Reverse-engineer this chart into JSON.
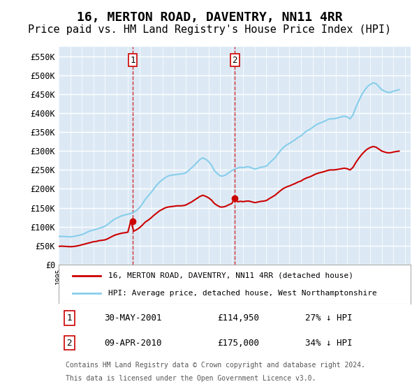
{
  "title": "16, MERTON ROAD, DAVENTRY, NN11 4RR",
  "subtitle": "Price paid vs. HM Land Registry's House Price Index (HPI)",
  "title_fontsize": 13,
  "subtitle_fontsize": 11,
  "ylabel_ticks": [
    "£0",
    "£50K",
    "£100K",
    "£150K",
    "£200K",
    "£250K",
    "£300K",
    "£350K",
    "£400K",
    "£450K",
    "£500K",
    "£550K"
  ],
  "ytick_values": [
    0,
    50000,
    100000,
    150000,
    200000,
    250000,
    300000,
    350000,
    400000,
    450000,
    500000,
    550000
  ],
  "ylim": [
    0,
    575000
  ],
  "background_color": "#dce9f5",
  "plot_bg_color": "#dce9f5",
  "grid_color": "#ffffff",
  "hpi_color": "#87CEEB",
  "price_color": "#cc0000",
  "marker1_x": 2001.42,
  "marker1_y": 114950,
  "marker2_x": 2010.27,
  "marker2_y": 175000,
  "legend_line1": "16, MERTON ROAD, DAVENTRY, NN11 4RR (detached house)",
  "legend_line2": "HPI: Average price, detached house, West Northamptonshire",
  "transaction1_num": "1",
  "transaction1_date": "30-MAY-2001",
  "transaction1_price": "£114,950",
  "transaction1_hpi": "27% ↓ HPI",
  "transaction2_num": "2",
  "transaction2_date": "09-APR-2010",
  "transaction2_price": "£175,000",
  "transaction2_hpi": "34% ↓ HPI",
  "footnote1": "Contains HM Land Registry data © Crown copyright and database right 2024.",
  "footnote2": "This data is licensed under the Open Government Licence v3.0.",
  "xmin": 1995,
  "xmax": 2025.5,
  "hpi_data_x": [
    1995.0,
    1995.25,
    1995.5,
    1995.75,
    1996.0,
    1996.25,
    1996.5,
    1996.75,
    1997.0,
    1997.25,
    1997.5,
    1997.75,
    1998.0,
    1998.25,
    1998.5,
    1998.75,
    1999.0,
    1999.25,
    1999.5,
    1999.75,
    2000.0,
    2000.25,
    2000.5,
    2000.75,
    2001.0,
    2001.25,
    2001.5,
    2001.75,
    2002.0,
    2002.25,
    2002.5,
    2002.75,
    2003.0,
    2003.25,
    2003.5,
    2003.75,
    2004.0,
    2004.25,
    2004.5,
    2004.75,
    2005.0,
    2005.25,
    2005.5,
    2005.75,
    2006.0,
    2006.25,
    2006.5,
    2006.75,
    2007.0,
    2007.25,
    2007.5,
    2007.75,
    2008.0,
    2008.25,
    2008.5,
    2008.75,
    2009.0,
    2009.25,
    2009.5,
    2009.75,
    2010.0,
    2010.25,
    2010.5,
    2010.75,
    2011.0,
    2011.25,
    2011.5,
    2011.75,
    2012.0,
    2012.25,
    2012.5,
    2012.75,
    2013.0,
    2013.25,
    2013.5,
    2013.75,
    2014.0,
    2014.25,
    2014.5,
    2014.75,
    2015.0,
    2015.25,
    2015.5,
    2015.75,
    2016.0,
    2016.25,
    2016.5,
    2016.75,
    2017.0,
    2017.25,
    2017.5,
    2017.75,
    2018.0,
    2018.25,
    2018.5,
    2018.75,
    2019.0,
    2019.25,
    2019.5,
    2019.75,
    2020.0,
    2020.25,
    2020.5,
    2020.75,
    2021.0,
    2021.25,
    2021.5,
    2021.75,
    2022.0,
    2022.25,
    2022.5,
    2022.75,
    2023.0,
    2023.25,
    2023.5,
    2023.75,
    2024.0,
    2024.25,
    2024.5
  ],
  "hpi_data_y": [
    74000,
    74500,
    74000,
    73500,
    73000,
    74000,
    75500,
    77000,
    79000,
    82000,
    86000,
    89000,
    91000,
    93000,
    96000,
    98000,
    101000,
    106000,
    112000,
    118000,
    122000,
    126000,
    129000,
    131000,
    133000,
    135000,
    138000,
    143000,
    150000,
    160000,
    172000,
    181000,
    190000,
    200000,
    210000,
    218000,
    224000,
    230000,
    234000,
    236000,
    237000,
    238000,
    239000,
    240000,
    242000,
    248000,
    255000,
    262000,
    270000,
    278000,
    282000,
    278000,
    272000,
    262000,
    248000,
    240000,
    234000,
    234000,
    237000,
    243000,
    248000,
    252000,
    255000,
    257000,
    256000,
    258000,
    258000,
    255000,
    252000,
    254000,
    257000,
    258000,
    260000,
    268000,
    275000,
    282000,
    292000,
    302000,
    310000,
    316000,
    320000,
    325000,
    330000,
    336000,
    340000,
    347000,
    353000,
    357000,
    362000,
    368000,
    372000,
    375000,
    378000,
    382000,
    385000,
    385000,
    386000,
    388000,
    390000,
    392000,
    390000,
    385000,
    395000,
    415000,
    432000,
    448000,
    460000,
    470000,
    476000,
    480000,
    478000,
    470000,
    462000,
    458000,
    455000,
    455000,
    458000,
    460000,
    462000
  ],
  "price_data_x": [
    1995.0,
    1995.25,
    1995.5,
    1995.75,
    1996.0,
    1996.25,
    1996.5,
    1996.75,
    1997.0,
    1997.25,
    1997.5,
    1997.75,
    1998.0,
    1998.25,
    1998.5,
    1998.75,
    1999.0,
    1999.25,
    1999.5,
    1999.75,
    2000.0,
    2000.25,
    2000.5,
    2000.75,
    2001.0,
    2001.25,
    2001.5,
    2001.75,
    2002.0,
    2002.25,
    2002.5,
    2002.75,
    2003.0,
    2003.25,
    2003.5,
    2003.75,
    2004.0,
    2004.25,
    2004.5,
    2004.75,
    2005.0,
    2005.25,
    2005.5,
    2005.75,
    2006.0,
    2006.25,
    2006.5,
    2006.75,
    2007.0,
    2007.25,
    2007.5,
    2007.75,
    2008.0,
    2008.25,
    2008.5,
    2008.75,
    2009.0,
    2009.25,
    2009.5,
    2009.75,
    2010.0,
    2010.25,
    2010.5,
    2010.75,
    2011.0,
    2011.25,
    2011.5,
    2011.75,
    2012.0,
    2012.25,
    2012.5,
    2012.75,
    2013.0,
    2013.25,
    2013.5,
    2013.75,
    2014.0,
    2014.25,
    2014.5,
    2014.75,
    2015.0,
    2015.25,
    2015.5,
    2015.75,
    2016.0,
    2016.25,
    2016.5,
    2016.75,
    2017.0,
    2017.25,
    2017.5,
    2017.75,
    2018.0,
    2018.25,
    2018.5,
    2018.75,
    2019.0,
    2019.25,
    2019.5,
    2019.75,
    2020.0,
    2020.25,
    2020.5,
    2020.75,
    2021.0,
    2021.25,
    2021.5,
    2021.75,
    2022.0,
    2022.25,
    2022.5,
    2022.75,
    2023.0,
    2023.25,
    2023.5,
    2023.75,
    2024.0,
    2024.25,
    2024.5
  ],
  "price_data_y": [
    48000,
    48500,
    48000,
    47500,
    47000,
    47500,
    48500,
    50000,
    52000,
    54000,
    56000,
    58000,
    60000,
    61000,
    63000,
    64000,
    65000,
    68000,
    72000,
    76000,
    79000,
    81000,
    83000,
    84000,
    85500,
    114950,
    88000,
    92000,
    97000,
    104000,
    112000,
    117000,
    123000,
    130000,
    136000,
    142000,
    146000,
    150000,
    152000,
    153000,
    154000,
    155000,
    155000,
    155500,
    157000,
    161000,
    165000,
    170000,
    175000,
    180000,
    183000,
    180000,
    176000,
    170000,
    161000,
    156000,
    152000,
    152000,
    154000,
    158000,
    161000,
    175000,
    165700,
    167000,
    166000,
    167500,
    167500,
    165500,
    163500,
    165000,
    166700,
    167500,
    169000,
    174000,
    178500,
    183000,
    189500,
    196000,
    201300,
    205000,
    207700,
    211000,
    214200,
    218000,
    220600,
    225500,
    229000,
    231500,
    235000,
    238900,
    241500,
    243400,
    245400,
    248000,
    249900,
    249900,
    250500,
    251800,
    253100,
    254500,
    253100,
    249900,
    256400,
    269400,
    280400,
    290300,
    298500,
    305000,
    309200,
    311800,
    310100,
    305000,
    299700,
    297200,
    295300,
    295300,
    297200,
    298500,
    299700
  ]
}
